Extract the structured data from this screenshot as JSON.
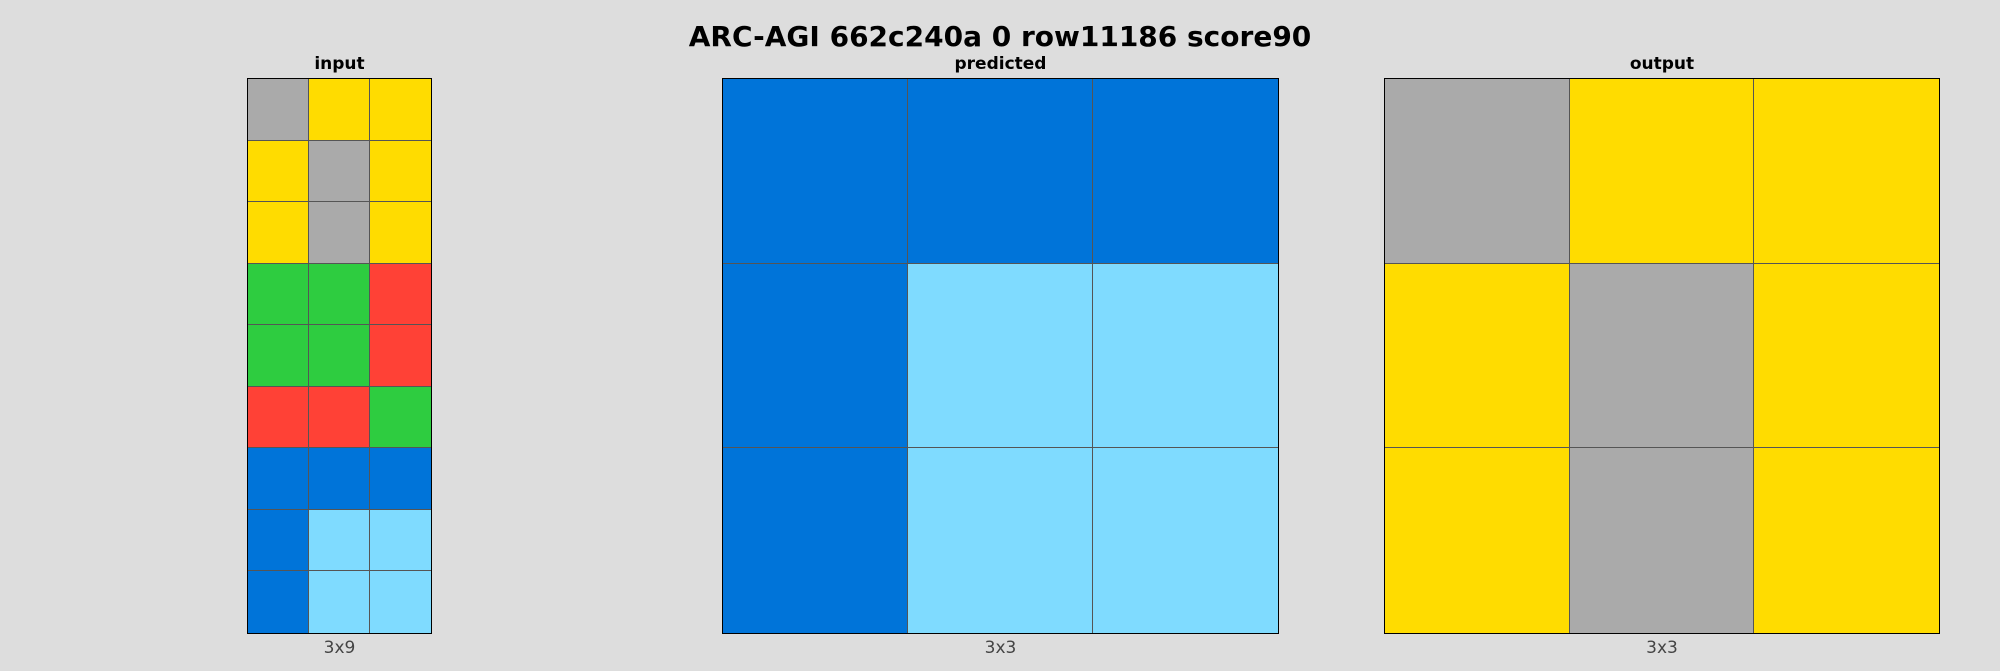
{
  "title": "ARC-AGI 662c240a 0 row11186 score90",
  "palette": {
    "1": "#0074d9",
    "2": "#ff4136",
    "3": "#2ecc40",
    "4": "#ffdc00",
    "5": "#aaaaaa",
    "8": "#7fdbff"
  },
  "panels": {
    "input": {
      "label": "input",
      "dims": "3x9",
      "rows": [
        [
          5,
          4,
          4
        ],
        [
          4,
          5,
          4
        ],
        [
          4,
          5,
          4
        ],
        [
          3,
          3,
          2
        ],
        [
          3,
          3,
          2
        ],
        [
          2,
          2,
          3
        ],
        [
          1,
          1,
          1
        ],
        [
          1,
          8,
          8
        ],
        [
          1,
          8,
          8
        ]
      ]
    },
    "predicted": {
      "label": "predicted",
      "dims": "3x3",
      "rows": [
        [
          1,
          1,
          1
        ],
        [
          1,
          8,
          8
        ],
        [
          1,
          8,
          8
        ]
      ]
    },
    "output": {
      "label": "output",
      "dims": "3x3",
      "rows": [
        [
          5,
          4,
          4
        ],
        [
          4,
          5,
          4
        ],
        [
          4,
          5,
          4
        ]
      ]
    }
  }
}
